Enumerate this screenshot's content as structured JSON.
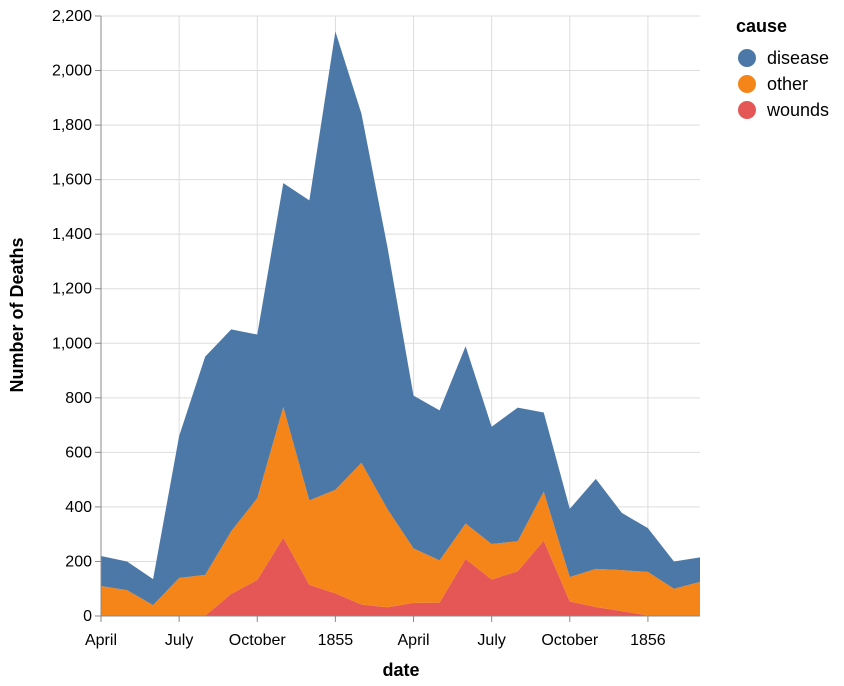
{
  "chart_data": {
    "type": "area",
    "stacked": true,
    "xlabel": "date",
    "ylabel": "Number of Deaths",
    "ylim": [
      0,
      2200
    ],
    "y_ticks": [
      0,
      200,
      400,
      600,
      800,
      1000,
      1200,
      1400,
      1600,
      1800,
      2000,
      2200
    ],
    "grid": true,
    "legend_placement": "top-right",
    "legend_title": "cause",
    "x_tick_labels": [
      {
        "date": "1854-04",
        "label": "April"
      },
      {
        "date": "1854-07",
        "label": "July"
      },
      {
        "date": "1854-10",
        "label": "October"
      },
      {
        "date": "1855-01",
        "label": "1855"
      },
      {
        "date": "1855-04",
        "label": "April"
      },
      {
        "date": "1855-07",
        "label": "July"
      },
      {
        "date": "1855-10",
        "label": "October"
      },
      {
        "date": "1856-01",
        "label": "1856"
      }
    ],
    "x": [
      "1854-04",
      "1854-05",
      "1854-06",
      "1854-07",
      "1854-08",
      "1854-09",
      "1854-10",
      "1854-11",
      "1854-12",
      "1855-01",
      "1855-02",
      "1855-03",
      "1855-04",
      "1855-05",
      "1855-06",
      "1855-07",
      "1855-08",
      "1855-09",
      "1855-10",
      "1855-11",
      "1855-12",
      "1856-01",
      "1856-02",
      "1856-03"
    ],
    "series": [
      {
        "name": "wounds",
        "color": "#e45756",
        "values": [
          0,
          0,
          0,
          0,
          1,
          81,
          132,
          287,
          114,
          83,
          42,
          32,
          48,
          49,
          209,
          134,
          164,
          276,
          53,
          33,
          18,
          2,
          0,
          0
        ]
      },
      {
        "name": "other",
        "color": "#f58518",
        "values": [
          110,
          95,
          40,
          140,
          150,
          230,
          300,
          480,
          310,
          380,
          520,
          360,
          200,
          155,
          130,
          130,
          110,
          180,
          90,
          140,
          150,
          160,
          100,
          125
        ]
      },
      {
        "name": "disease",
        "color": "#4c78a8",
        "values": [
          110,
          105,
          95,
          520,
          800,
          740,
          600,
          820,
          1100,
          1680,
          1280,
          960,
          560,
          550,
          650,
          430,
          490,
          290,
          250,
          330,
          210,
          160,
          100,
          90
        ]
      }
    ]
  }
}
